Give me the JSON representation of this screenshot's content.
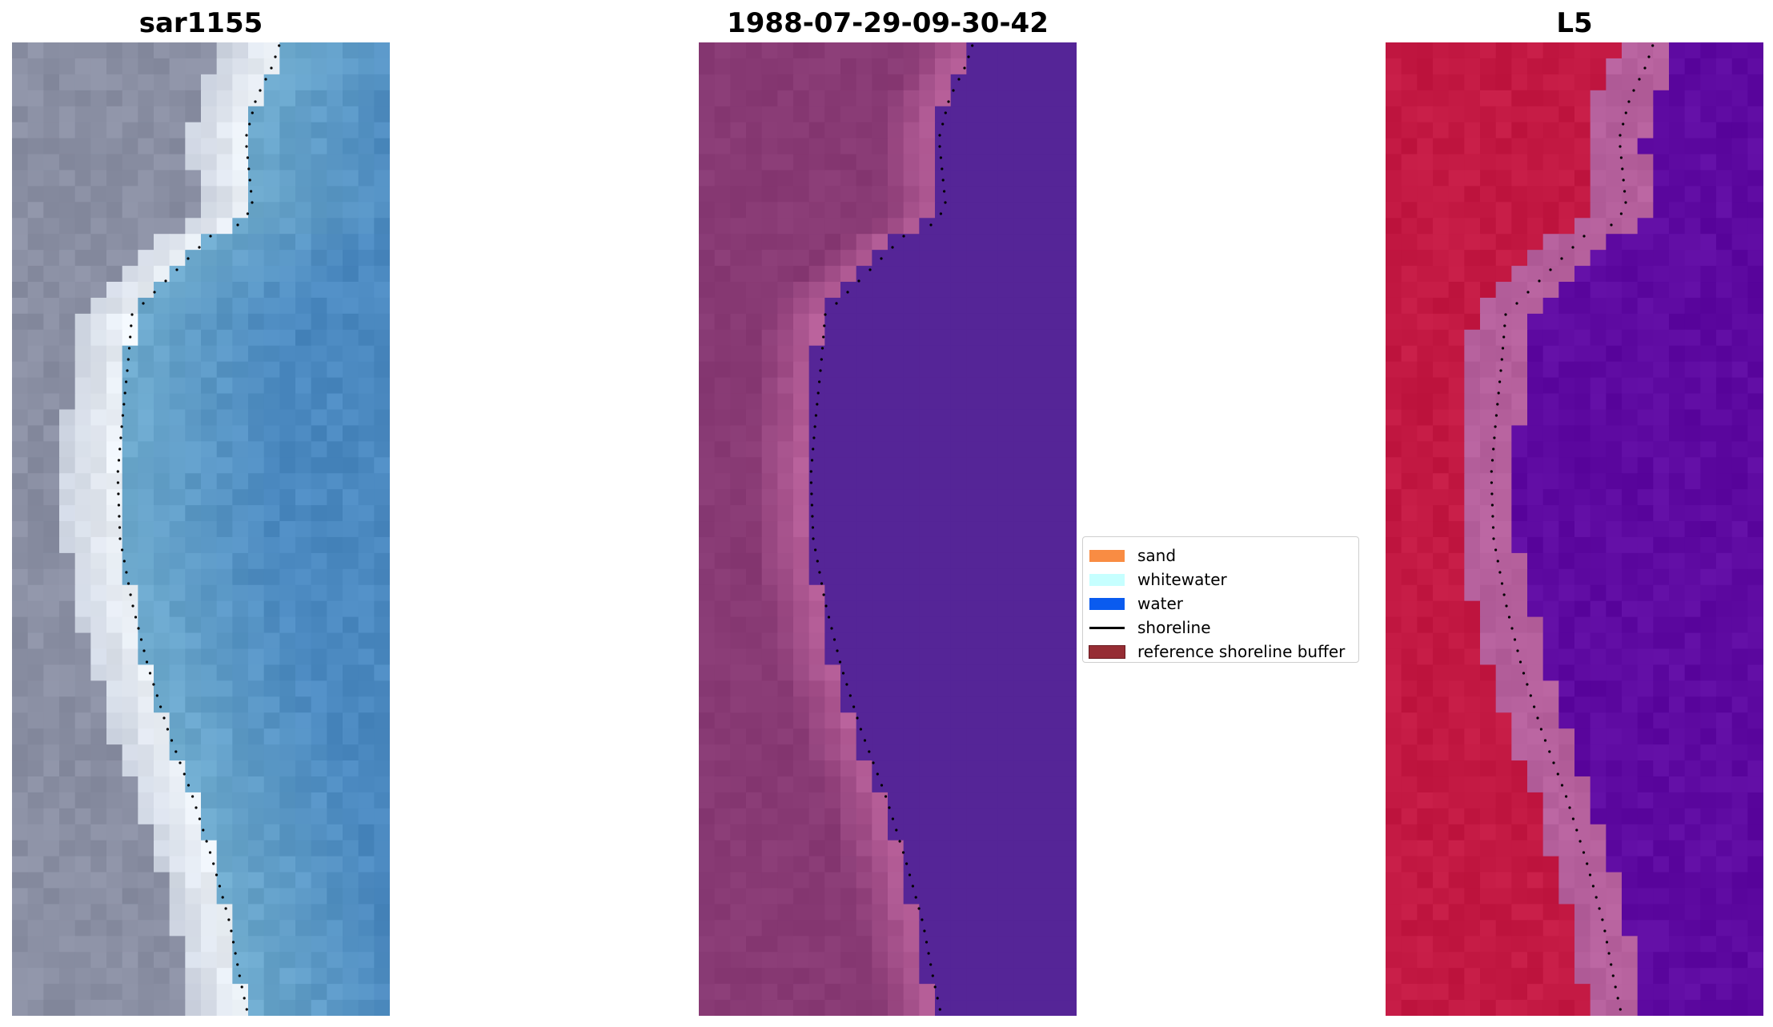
{
  "figure": {
    "panels": [
      {
        "title": "sar1155"
      },
      {
        "title": "1988-07-29-09-30-42"
      },
      {
        "title": "L5"
      }
    ]
  },
  "legend": {
    "items": [
      {
        "label": "sand",
        "color": "#f98c43",
        "kind": "patch"
      },
      {
        "label": "whitewater",
        "color": "#c6ffff",
        "kind": "patch"
      },
      {
        "label": "water",
        "color": "#0a5bef",
        "kind": "patch"
      },
      {
        "label": "shoreline",
        "color": "#000000",
        "kind": "line"
      },
      {
        "label": "reference shoreline buffer",
        "color": "#962d34",
        "kind": "patch"
      }
    ]
  },
  "colors": {
    "rgb_land": "#8a8fa3",
    "rgb_water": "#4b89c0",
    "rgb_whitewater": "#eef3f8",
    "class_land": "#883a74",
    "class_buffer": "#b8609a",
    "class_water": "#552597",
    "ndwi_land": "#c31943",
    "ndwi_buffer": "#b5609c",
    "ndwi_water": "#5e0aa1"
  }
}
